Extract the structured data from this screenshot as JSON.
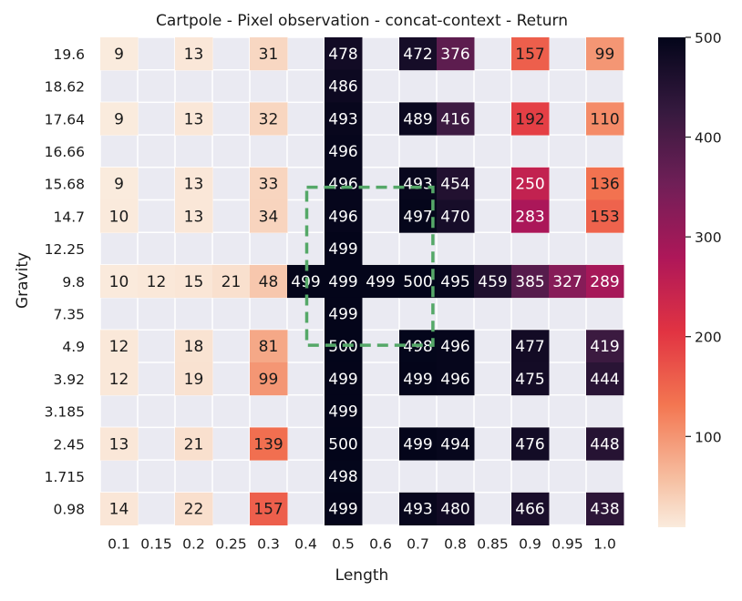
{
  "chart_data": {
    "type": "heatmap",
    "title": "Cartpole - Pixel observation - concat-context - Return",
    "xlabel": "Length",
    "ylabel": "Gravity",
    "x_categories": [
      "0.1",
      "0.15",
      "0.2",
      "0.25",
      "0.3",
      "0.4",
      "0.5",
      "0.6",
      "0.7",
      "0.8",
      "0.85",
      "0.9",
      "0.95",
      "1.0"
    ],
    "y_categories": [
      "19.6",
      "18.62",
      "17.64",
      "16.66",
      "15.68",
      "14.7",
      "12.25",
      "9.8",
      "7.35",
      "4.9",
      "3.92",
      "3.185",
      "2.45",
      "1.715",
      "0.98"
    ],
    "values": [
      [
        9,
        null,
        13,
        null,
        31,
        null,
        478,
        null,
        472,
        376,
        null,
        157,
        null,
        99
      ],
      [
        null,
        null,
        null,
        null,
        null,
        null,
        486,
        null,
        null,
        null,
        null,
        null,
        null,
        null
      ],
      [
        9,
        null,
        13,
        null,
        32,
        null,
        493,
        null,
        489,
        416,
        null,
        192,
        null,
        110
      ],
      [
        null,
        null,
        null,
        null,
        null,
        null,
        496,
        null,
        null,
        null,
        null,
        null,
        null,
        null
      ],
      [
        9,
        null,
        13,
        null,
        33,
        null,
        496,
        null,
        493,
        454,
        null,
        250,
        null,
        136
      ],
      [
        10,
        null,
        13,
        null,
        34,
        null,
        496,
        null,
        497,
        470,
        null,
        283,
        null,
        153
      ],
      [
        null,
        null,
        null,
        null,
        null,
        null,
        499,
        null,
        null,
        null,
        null,
        null,
        null,
        null
      ],
      [
        10,
        12,
        15,
        21,
        48,
        499,
        499,
        499,
        500,
        495,
        459,
        385,
        327,
        289
      ],
      [
        null,
        null,
        null,
        null,
        null,
        null,
        499,
        null,
        null,
        null,
        null,
        null,
        null,
        null
      ],
      [
        12,
        null,
        18,
        null,
        81,
        null,
        500,
        null,
        498,
        496,
        null,
        477,
        null,
        419
      ],
      [
        12,
        null,
        19,
        null,
        99,
        null,
        499,
        null,
        499,
        496,
        null,
        475,
        null,
        444
      ],
      [
        null,
        null,
        null,
        null,
        null,
        null,
        499,
        null,
        null,
        null,
        null,
        null,
        null,
        null
      ],
      [
        13,
        null,
        21,
        null,
        139,
        null,
        500,
        null,
        499,
        494,
        null,
        476,
        null,
        448
      ],
      [
        null,
        null,
        null,
        null,
        null,
        null,
        498,
        null,
        null,
        null,
        null,
        null,
        null,
        null
      ],
      [
        14,
        null,
        22,
        null,
        157,
        null,
        499,
        null,
        493,
        480,
        null,
        466,
        null,
        438
      ]
    ],
    "vmin": 9,
    "vmax": 500,
    "colorbar_ticks": [
      100,
      200,
      300,
      400,
      500
    ],
    "colormap": "rocket_r",
    "background_color": "#eaeaf2",
    "highlight_box": {
      "x_from": "0.4",
      "x_to": "0.8",
      "y_from": "14.7",
      "y_to": "4.9",
      "color": "#55a868",
      "style": "dashed"
    }
  }
}
